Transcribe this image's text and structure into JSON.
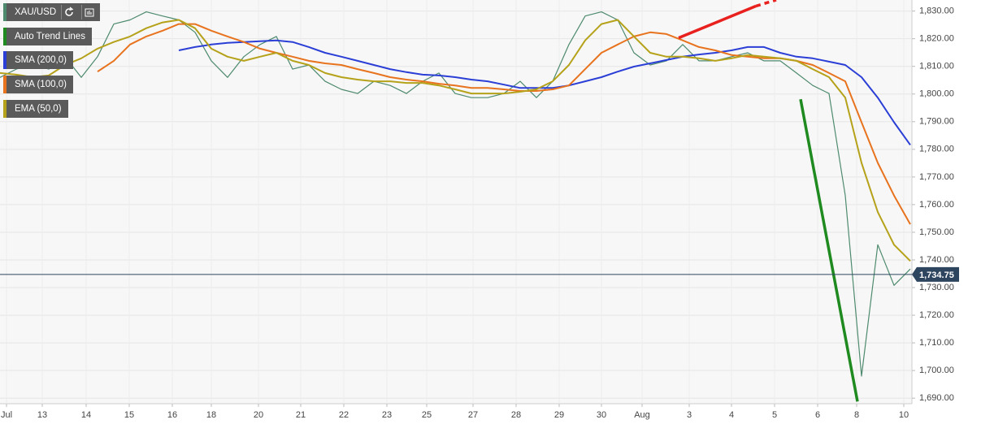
{
  "chart_data": {
    "type": "line",
    "xlim": [
      0,
      112
    ],
    "ylim": [
      1688,
      1834
    ],
    "grid": true,
    "xticks": [
      {
        "value": 0.8,
        "label": "Jul"
      },
      {
        "value": 5.2,
        "label": "13"
      },
      {
        "value": 10.6,
        "label": "14"
      },
      {
        "value": 15.9,
        "label": "15"
      },
      {
        "value": 21.2,
        "label": "16"
      },
      {
        "value": 26,
        "label": "18"
      },
      {
        "value": 31.8,
        "label": "20"
      },
      {
        "value": 37,
        "label": "21"
      },
      {
        "value": 42.3,
        "label": "22"
      },
      {
        "value": 47.6,
        "label": "23"
      },
      {
        "value": 52.5,
        "label": "25"
      },
      {
        "value": 58.2,
        "label": "27"
      },
      {
        "value": 63.5,
        "label": "28"
      },
      {
        "value": 68.8,
        "label": "29"
      },
      {
        "value": 74,
        "label": "30"
      },
      {
        "value": 79,
        "label": "Aug"
      },
      {
        "value": 84.8,
        "label": "3"
      },
      {
        "value": 90,
        "label": "4"
      },
      {
        "value": 95.3,
        "label": "5"
      },
      {
        "value": 100.6,
        "label": "6"
      },
      {
        "value": 105.4,
        "label": "8"
      },
      {
        "value": 111.2,
        "label": "10"
      }
    ],
    "yticks": [
      {
        "value": 1690,
        "label": "1,690.00"
      },
      {
        "value": 1700,
        "label": "1,700.00"
      },
      {
        "value": 1710,
        "label": "1,710.00"
      },
      {
        "value": 1720,
        "label": "1,720.00"
      },
      {
        "value": 1730,
        "label": "1,730.00"
      },
      {
        "value": 1740,
        "label": "1,740.00"
      },
      {
        "value": 1750,
        "label": "1,750.00"
      },
      {
        "value": 1760,
        "label": "1,760.00"
      },
      {
        "value": 1770,
        "label": "1,770.00"
      },
      {
        "value": 1780,
        "label": "1,780.00"
      },
      {
        "value": 1790,
        "label": "1,790.00"
      },
      {
        "value": 1800,
        "label": "1,800.00"
      },
      {
        "value": 1810,
        "label": "1,810.00"
      },
      {
        "value": 1820,
        "label": "1,820.00"
      },
      {
        "value": 1830,
        "label": "1,830.00"
      }
    ],
    "x": [
      0,
      2,
      4,
      6,
      8,
      10,
      12,
      14,
      16,
      18,
      20,
      22,
      24,
      26,
      28,
      30,
      32,
      34,
      36,
      38,
      40,
      42,
      44,
      46,
      48,
      50,
      52,
      54,
      56,
      58,
      60,
      62,
      64,
      66,
      68,
      70,
      72,
      74,
      76,
      78,
      80,
      82,
      84,
      86,
      88,
      90,
      92,
      94,
      96,
      98,
      100,
      102,
      104,
      106,
      108,
      110,
      112
    ],
    "series": [
      {
        "name": "XAU/USD",
        "color": "#4d8a6e",
        "values": [
          1806,
          1809,
          1810.5,
          1809,
          1813.5,
          1806,
          1813.5,
          1825.3,
          1826.8,
          1829.7,
          1828.2,
          1826.8,
          1822.3,
          1812,
          1806,
          1813.5,
          1817.9,
          1820.8,
          1809,
          1810.5,
          1804.6,
          1801.7,
          1800.2,
          1804.6,
          1803.1,
          1800.2,
          1804.6,
          1807.6,
          1800.2,
          1798.7,
          1798.7,
          1800.2,
          1804.6,
          1798.7,
          1804.6,
          1817.9,
          1828.2,
          1829.7,
          1826.8,
          1814.9,
          1810.5,
          1812,
          1817.9,
          1812,
          1812,
          1813.5,
          1814.9,
          1812,
          1812,
          1807.6,
          1803.1,
          1800.2,
          1763.3,
          1698,
          1745.5,
          1730.8,
          1736.7
        ]
      },
      {
        "name": "SMA (200,0)",
        "color": "#2b3fd6",
        "values": [
          null,
          null,
          null,
          null,
          null,
          null,
          null,
          null,
          null,
          null,
          null,
          1815.8,
          1817.0,
          1817.9,
          1818.5,
          1818.8,
          1819.1,
          1819.4,
          1818.8,
          1817.0,
          1814.9,
          1813.5,
          1812.0,
          1810.5,
          1809.0,
          1807.9,
          1807.0,
          1806.7,
          1806.1,
          1805.2,
          1804.6,
          1803.4,
          1802.2,
          1802.2,
          1802.2,
          1803.1,
          1804.6,
          1806.1,
          1808.1,
          1809.9,
          1811.1,
          1812.3,
          1813.5,
          1814.3,
          1814.9,
          1815.8,
          1817.0,
          1817.0,
          1814.9,
          1813.5,
          1812.9,
          1811.7,
          1810.5,
          1806.1,
          1798.7,
          1789.8,
          1781.6
        ]
      },
      {
        "name": "SMA (100,0)",
        "color": "#e8731e",
        "values": [
          null,
          null,
          null,
          null,
          null,
          null,
          1808.1,
          1812.0,
          1817.9,
          1820.8,
          1822.9,
          1825.3,
          1825.3,
          1822.9,
          1820.8,
          1818.8,
          1816.4,
          1814.9,
          1813.5,
          1812.0,
          1811.1,
          1810.5,
          1809.0,
          1807.6,
          1806.1,
          1805.2,
          1804.6,
          1803.7,
          1803.1,
          1802.2,
          1802.2,
          1801.7,
          1801.1,
          1801.1,
          1801.7,
          1803.1,
          1809.0,
          1814.9,
          1817.9,
          1820.8,
          1822.3,
          1821.7,
          1819.4,
          1817.0,
          1815.8,
          1814.1,
          1813.5,
          1812.9,
          1812.9,
          1812.0,
          1810.5,
          1807.6,
          1804.6,
          1789.8,
          1775.1,
          1763.3,
          1752.9
        ]
      },
      {
        "name": "EMA (50,0)",
        "color": "#b5a21a",
        "values": [
          1807.6,
          1807.0,
          1806.1,
          1806.7,
          1810.5,
          1812.9,
          1816.4,
          1818.8,
          1820.8,
          1823.8,
          1825.9,
          1826.8,
          1823.8,
          1816.4,
          1813.5,
          1812.0,
          1813.5,
          1814.9,
          1812.0,
          1810.5,
          1807.6,
          1806.1,
          1805.2,
          1804.6,
          1804.6,
          1804.0,
          1804.0,
          1803.1,
          1801.7,
          1800.2,
          1800.2,
          1800.2,
          1800.8,
          1801.7,
          1804.6,
          1810.5,
          1819.4,
          1825.3,
          1826.8,
          1820.8,
          1814.9,
          1813.5,
          1813.5,
          1812.9,
          1812.0,
          1812.9,
          1814.1,
          1813.5,
          1812.9,
          1812.0,
          1809.0,
          1806.1,
          1798.7,
          1775.1,
          1757.3,
          1745.5,
          1739.6
        ]
      }
    ],
    "trend_lines": {
      "name": "Auto Trend Lines",
      "color": "#1f8a1f",
      "lines": [
        {
          "color": "#e8201e",
          "dashed": false,
          "x": [
            83.5,
            93
          ],
          "values": [
            1820.3,
            1831.8
          ]
        },
        {
          "color": "#e8201e",
          "dashed": true,
          "x": [
            93,
            95.5
          ],
          "values": [
            1831.8,
            1834
          ]
        },
        {
          "color": "#1f8a1f",
          "dashed": false,
          "x": [
            98.5,
            105.5
          ],
          "values": [
            1798.1,
            1688.8
          ]
        }
      ]
    },
    "last_price": {
      "value": 1734.75,
      "label": "1,734.75",
      "color": "#2e4560"
    }
  }
}
